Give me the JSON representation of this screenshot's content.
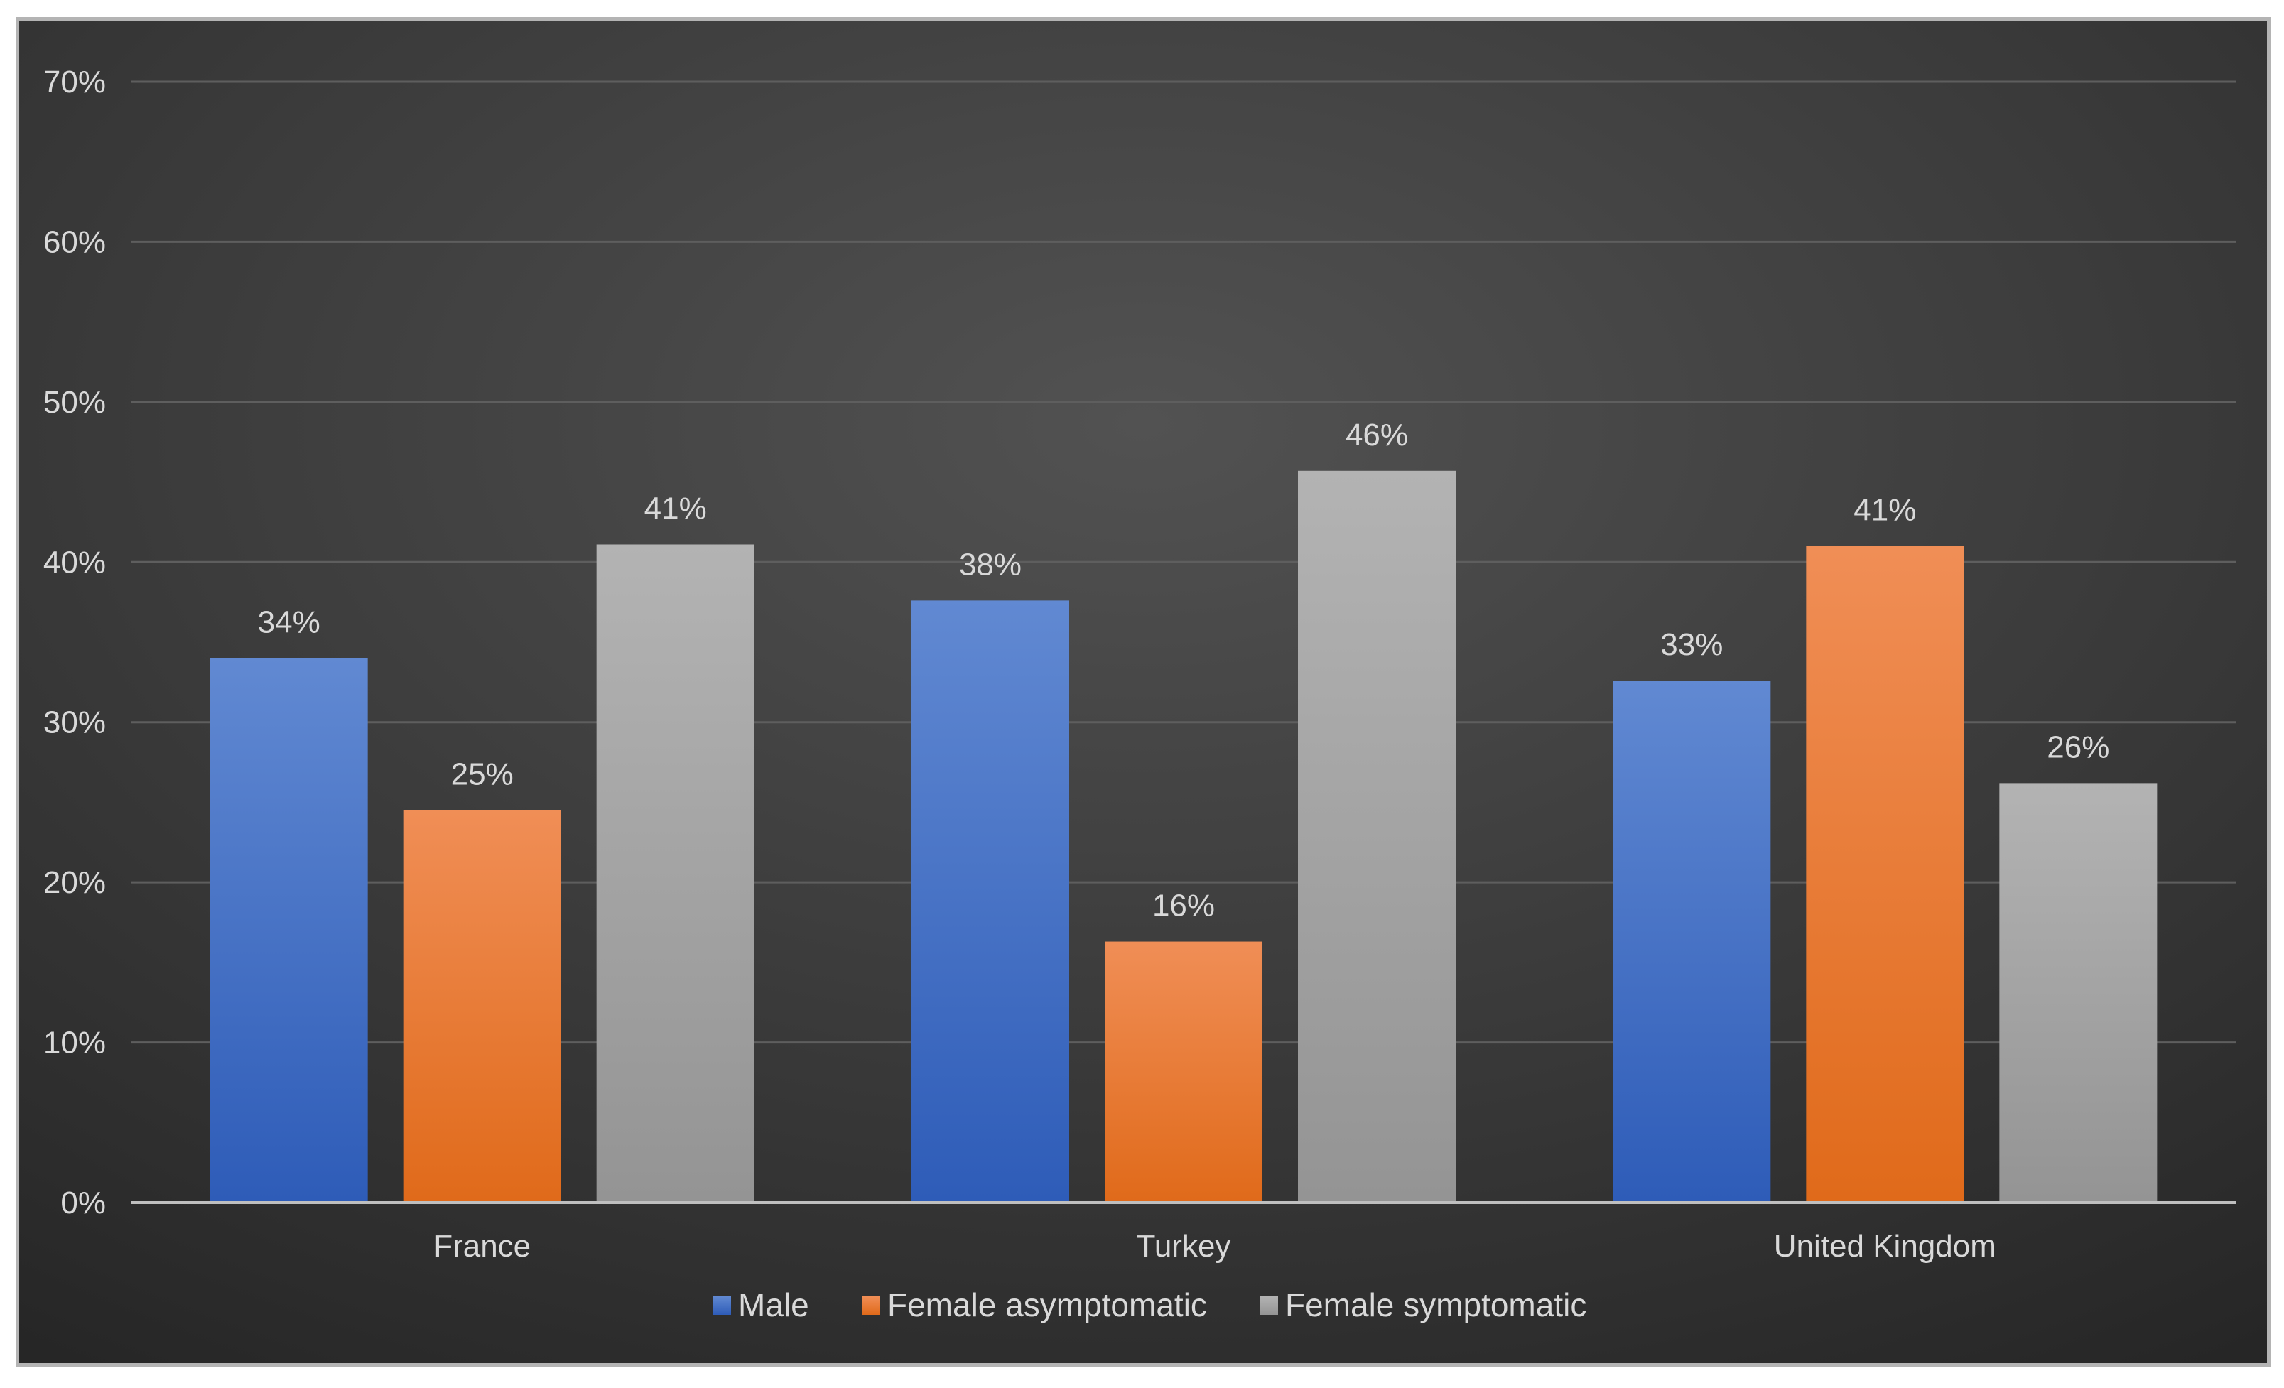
{
  "chart_data": {
    "type": "bar",
    "title": "",
    "xlabel": "",
    "ylabel": "",
    "categories": [
      "France",
      "Turkey",
      "United Kingdom"
    ],
    "series": [
      {
        "name": "Male",
        "values": [
          34,
          37.6,
          32.6
        ],
        "labels": [
          "34%",
          "38%",
          "33%"
        ],
        "color": "#4472c4"
      },
      {
        "name": "Female asymptomatic",
        "values": [
          24.5,
          16.3,
          41
        ],
        "labels": [
          "25%",
          "16%",
          "41%"
        ],
        "color": "#ed7d31"
      },
      {
        "name": "Female symptomatic",
        "values": [
          41.1,
          45.7,
          26.2
        ],
        "labels": [
          "41%",
          "46%",
          "26%"
        ],
        "color": "#a5a5a5"
      }
    ],
    "ylim": [
      0,
      70
    ],
    "yticks": [
      0,
      10,
      20,
      30,
      40,
      50,
      60,
      70
    ],
    "ytick_labels": [
      "0%",
      "10%",
      "20%",
      "30%",
      "40%",
      "50%",
      "60%",
      "70%"
    ],
    "grid": true,
    "legend_position": "bottom",
    "background_color": "#3b3b3b"
  }
}
